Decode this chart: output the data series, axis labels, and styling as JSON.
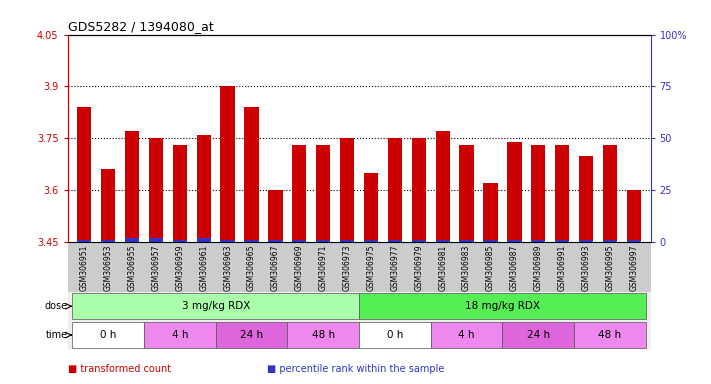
{
  "title": "GDS5282 / 1394080_at",
  "samples": [
    "GSM306951",
    "GSM306953",
    "GSM306955",
    "GSM306957",
    "GSM306959",
    "GSM306961",
    "GSM306963",
    "GSM306965",
    "GSM306967",
    "GSM306969",
    "GSM306971",
    "GSM306973",
    "GSM306975",
    "GSM306977",
    "GSM306979",
    "GSM306981",
    "GSM306983",
    "GSM306985",
    "GSM306987",
    "GSM306989",
    "GSM306991",
    "GSM306993",
    "GSM306995",
    "GSM306997"
  ],
  "transformed_count": [
    3.84,
    3.66,
    3.77,
    3.75,
    3.73,
    3.76,
    3.9,
    3.84,
    3.6,
    3.73,
    3.73,
    3.75,
    3.65,
    3.75,
    3.75,
    3.77,
    3.73,
    3.62,
    3.74,
    3.73,
    3.73,
    3.7,
    3.73,
    3.6
  ],
  "blue_bar_indices": [
    2,
    3,
    5
  ],
  "ylim_left": [
    3.45,
    4.05
  ],
  "ylim_right": [
    0,
    100
  ],
  "yticks_left": [
    3.45,
    3.6,
    3.75,
    3.9,
    4.05
  ],
  "yticks_right": [
    0,
    25,
    50,
    75,
    100
  ],
  "ytick_labels_left": [
    "3.45",
    "3.6",
    "3.75",
    "3.9",
    "4.05"
  ],
  "ytick_labels_right": [
    "0",
    "25",
    "50",
    "75",
    "100%"
  ],
  "hlines": [
    3.6,
    3.75,
    3.9
  ],
  "bar_color": "#cc0000",
  "blue_color": "#3333cc",
  "bar_width": 0.6,
  "dose_groups": [
    {
      "label": "3 mg/kg RDX",
      "start": 0,
      "end": 12,
      "color": "#aaffaa"
    },
    {
      "label": "18 mg/kg RDX",
      "start": 12,
      "end": 24,
      "color": "#55ee55"
    }
  ],
  "time_groups": [
    {
      "label": "0 h",
      "start": 0,
      "end": 3,
      "color": "#ffffff"
    },
    {
      "label": "4 h",
      "start": 3,
      "end": 6,
      "color": "#ee88ee"
    },
    {
      "label": "24 h",
      "start": 6,
      "end": 9,
      "color": "#dd66dd"
    },
    {
      "label": "48 h",
      "start": 9,
      "end": 12,
      "color": "#ee88ee"
    },
    {
      "label": "0 h",
      "start": 12,
      "end": 15,
      "color": "#ffffff"
    },
    {
      "label": "4 h",
      "start": 15,
      "end": 18,
      "color": "#ee88ee"
    },
    {
      "label": "24 h",
      "start": 18,
      "end": 21,
      "color": "#dd66dd"
    },
    {
      "label": "48 h",
      "start": 21,
      "end": 24,
      "color": "#ee88ee"
    }
  ],
  "legend_items": [
    {
      "label": "transformed count",
      "color": "#cc0000"
    },
    {
      "label": "percentile rank within the sample",
      "color": "#3333cc"
    }
  ],
  "background_color": "#ffffff",
  "axis_color_left": "#cc0000",
  "axis_color_right": "#3333cc",
  "xlabel_bg": "#cccccc"
}
